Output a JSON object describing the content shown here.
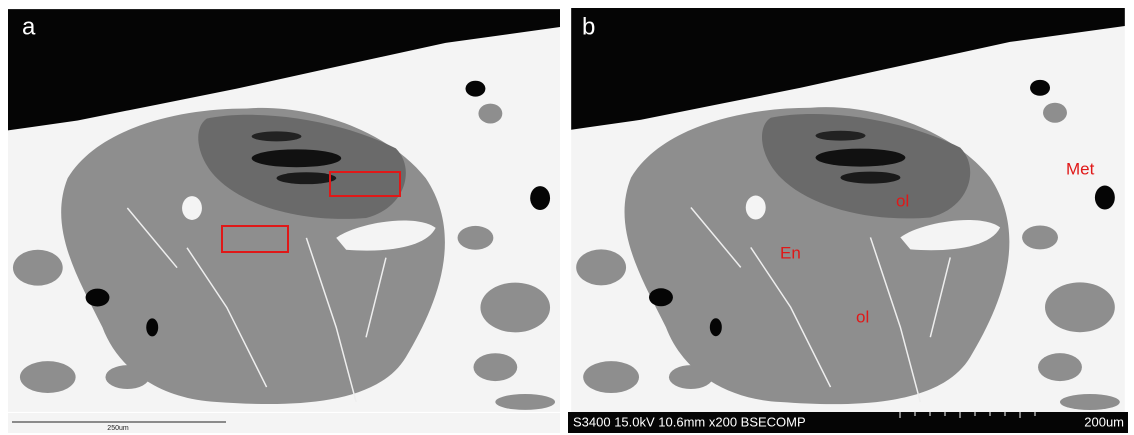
{
  "panels": [
    {
      "label": "a",
      "scale_bar": "250um"
    },
    {
      "label": "b",
      "annotations": [
        "Met",
        "ol",
        "En",
        "ol"
      ],
      "info_bar": "S3400 15.0kV 10.6mm x200 BSECOMP",
      "scale_bar": "200um"
    }
  ]
}
